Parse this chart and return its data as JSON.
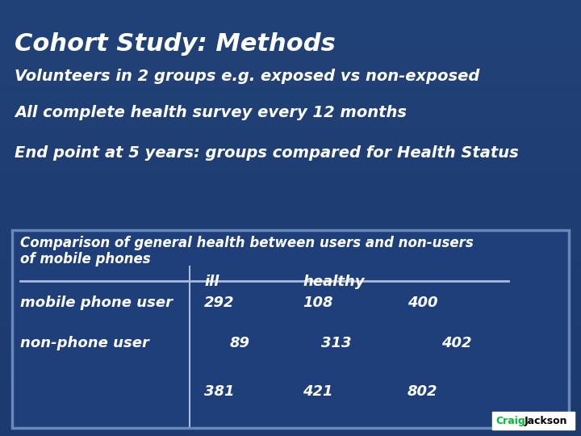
{
  "title": "Cohort Study: Methods",
  "bullet1": "Volunteers in 2 groups e.g. exposed vs non-exposed",
  "bullet2": "All complete health survey every 12 months",
  "bullet3": "End point at 5 years: groups compared for Health Status",
  "table_title_line1": "Comparison of general health between users and non-users",
  "table_title_line2": "of mobile phones",
  "col_header_ill": "ill",
  "col_header_healthy": "healthy",
  "row1_label": "mobile phone user",
  "row1_v1": "292",
  "row1_v2": "108",
  "row1_v3": "400",
  "row2_label": "non-phone user",
  "row2_v1": "89",
  "row2_v2": "313",
  "row2_v3": "402",
  "row3_v1": "381",
  "row3_v2": "421",
  "row3_v3": "802",
  "bg_top": "#1c3a6e",
  "bg_bottom": "#1a3568",
  "table_bg": "#1e3f7a",
  "table_border": "#5577bb",
  "text_color": "#ffffff",
  "line_color": "#aabbdd",
  "credit_bg": "#ffffff",
  "credit_craig_color": "#00bb33",
  "credit_jackson_color": "#000000"
}
